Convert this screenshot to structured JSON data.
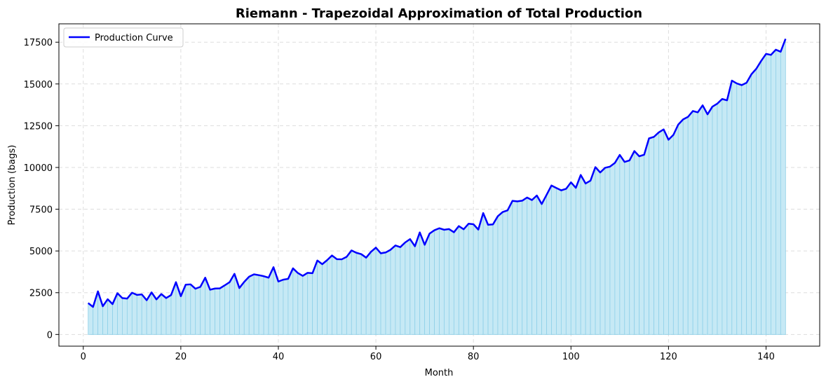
{
  "chart_data": {
    "type": "area",
    "title": "Riemann - Trapezoidal Approximation of Total Production",
    "xlabel": "Month",
    "ylabel": "Production (bags)",
    "xlim": [
      -5,
      151
    ],
    "ylim": [
      -700,
      18600
    ],
    "xticks": [
      0,
      20,
      40,
      60,
      80,
      100,
      120,
      140
    ],
    "yticks": [
      0,
      2500,
      5000,
      7500,
      10000,
      12500,
      15000,
      17500
    ],
    "grid": true,
    "legend_position": "top-left",
    "colors": {
      "line": "#0000ff",
      "fill": "#c6e9f5",
      "trapezoid_edge": "#8fd0e8",
      "grid": "#dddddd"
    },
    "series": [
      {
        "name": "Production Curve",
        "x_start": 1,
        "x_step": 1,
        "values": [
          1880,
          1650,
          2580,
          1690,
          2110,
          1820,
          2470,
          2180,
          2150,
          2500,
          2370,
          2400,
          2050,
          2520,
          2100,
          2420,
          2180,
          2360,
          3130,
          2290,
          2980,
          3000,
          2740,
          2850,
          3400,
          2680,
          2750,
          2760,
          2940,
          3130,
          3630,
          2780,
          3150,
          3460,
          3600,
          3550,
          3490,
          3400,
          4030,
          3170,
          3280,
          3330,
          3960,
          3680,
          3510,
          3690,
          3670,
          4430,
          4210,
          4450,
          4730,
          4510,
          4500,
          4650,
          5030,
          4890,
          4810,
          4600,
          4950,
          5200,
          4860,
          4910,
          5070,
          5330,
          5230,
          5510,
          5710,
          5280,
          6110,
          5370,
          6040,
          6240,
          6360,
          6270,
          6310,
          6120,
          6490,
          6300,
          6630,
          6600,
          6280,
          7270,
          6570,
          6590,
          7080,
          7330,
          7430,
          8000,
          7970,
          8010,
          8200,
          8050,
          8320,
          7810,
          8360,
          8920,
          8770,
          8630,
          8720,
          9110,
          8780,
          9550,
          9040,
          9210,
          10020,
          9700,
          9980,
          10050,
          10270,
          10750,
          10330,
          10420,
          10980,
          10670,
          10760,
          11740,
          11830,
          12100,
          12280,
          11660,
          11950,
          12570,
          12880,
          13030,
          13380,
          13300,
          13720,
          13180,
          13640,
          13820,
          14100,
          14020,
          15200,
          15030,
          14930,
          15070,
          15580,
          15910,
          16380,
          16800,
          16740,
          17050,
          16930,
          17700
        ]
      }
    ]
  }
}
